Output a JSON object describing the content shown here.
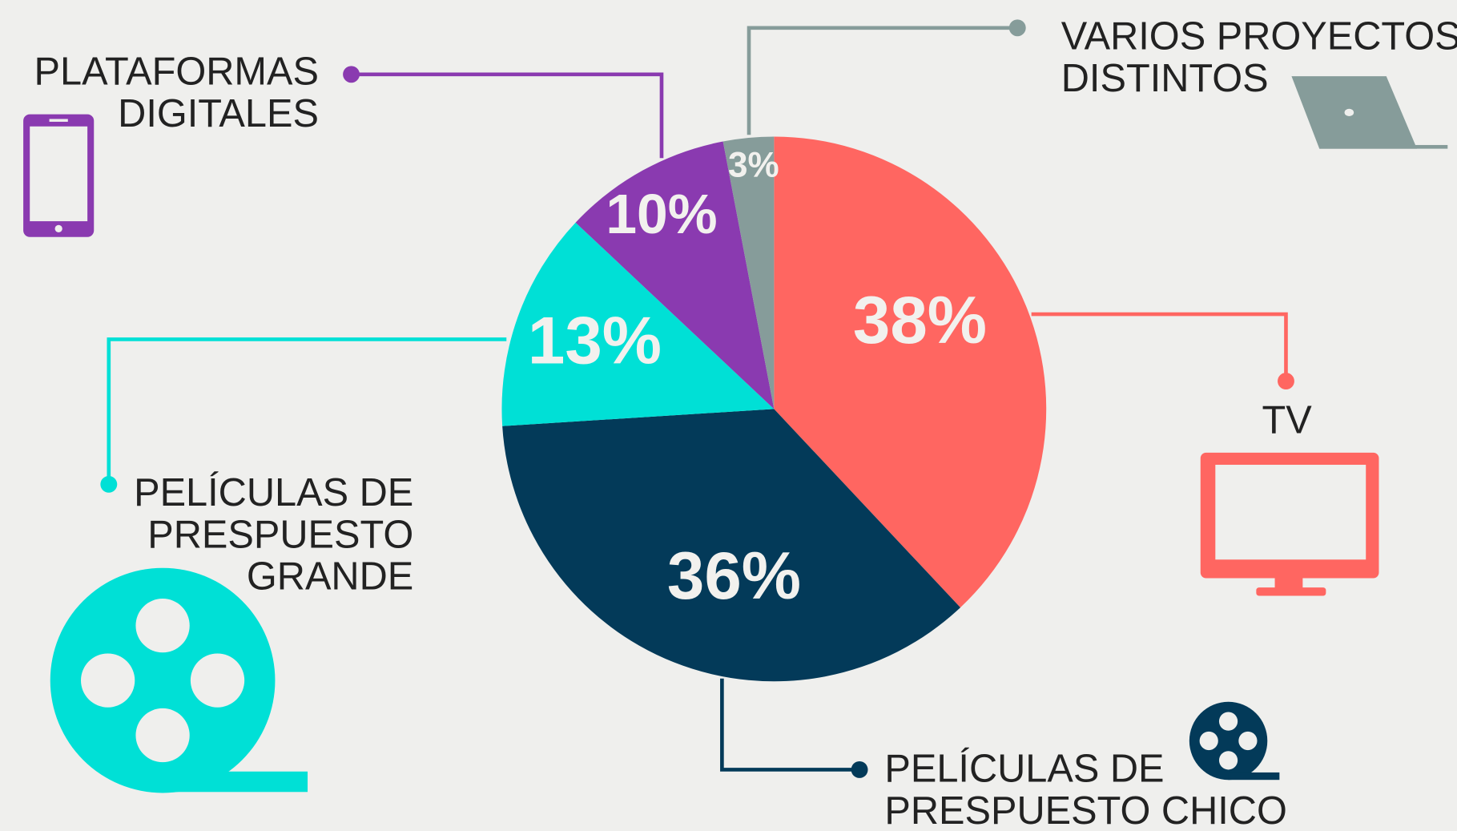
{
  "chart_data": {
    "type": "pie",
    "categories": [
      [
        "TV"
      ],
      [
        "PELÍCULAS DE",
        "PRESPUESTO CHICO"
      ],
      [
        "PELÍCULAS DE",
        "PRESPUESTO",
        "GRANDE"
      ],
      [
        "PLATAFORMAS",
        "DIGITALES"
      ],
      [
        "VARIOS PROYECTOS",
        "DISTINTOS"
      ]
    ],
    "values": [
      38,
      36,
      13,
      10,
      3
    ],
    "value_labels": [
      "38%",
      "36%",
      "13%",
      "10%",
      "3%"
    ],
    "colors": [
      "#ff6661",
      "#033a59",
      "#00e0d6",
      "#8a3ab0",
      "#869c9a"
    ]
  }
}
